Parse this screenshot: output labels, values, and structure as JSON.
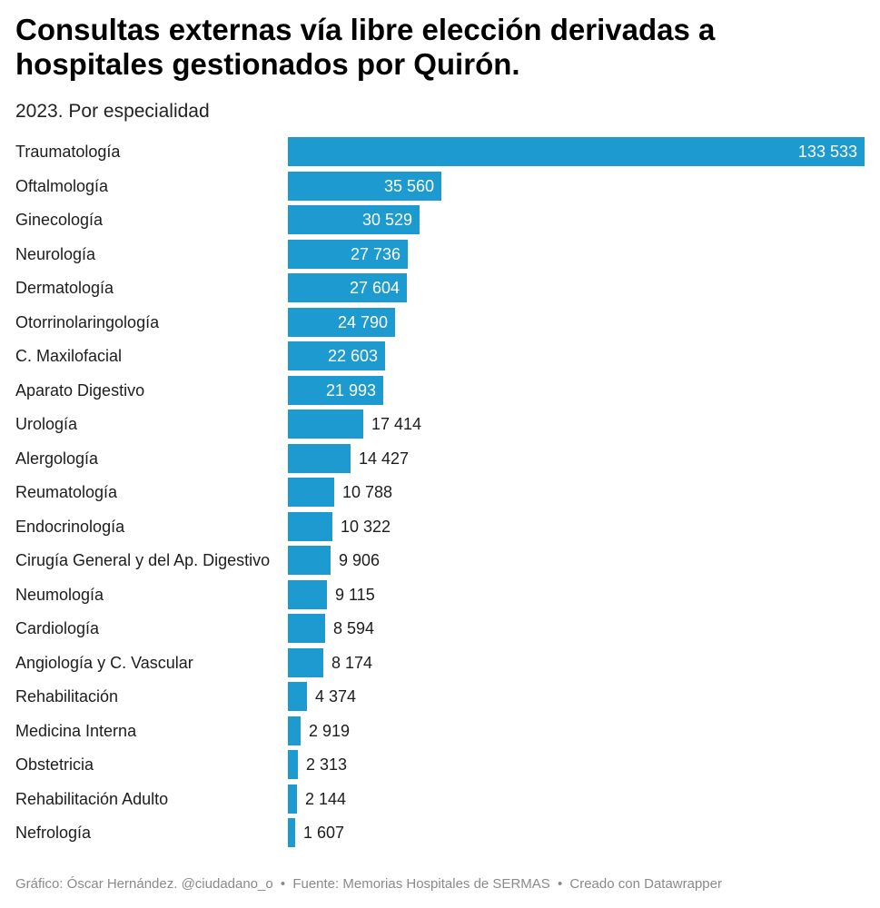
{
  "chart_data": {
    "type": "bar",
    "orientation": "horizontal",
    "title": "Consultas externas vía libre elección derivadas a hospitales gestionados por Quirón.",
    "subtitle": "2023. Por especialidad",
    "categories": [
      "Traumatología",
      "Oftalmología",
      "Ginecología",
      "Neurología",
      "Dermatología",
      "Otorrinolaringología",
      "C. Maxilofacial",
      "Aparato Digestivo",
      "Urología",
      "Alergología",
      "Reumatología",
      "Endocrinología",
      "Cirugía General y del Ap. Digestivo",
      "Neumología",
      "Cardiología",
      "Angiología y C. Vascular",
      "Rehabilitación",
      "Medicina Interna",
      "Obstetricia",
      "Rehabilitación Adulto",
      "Nefrología"
    ],
    "values": [
      133533,
      35560,
      30529,
      27736,
      27604,
      24790,
      22603,
      21993,
      17414,
      14427,
      10788,
      10322,
      9906,
      9115,
      8594,
      8174,
      4374,
      2919,
      2313,
      2144,
      1607
    ],
    "value_labels": [
      "133 533",
      "35 560",
      "30 529",
      "27 736",
      "27 604",
      "24 790",
      "22 603",
      "21 993",
      "17 414",
      "14 427",
      "10 788",
      "10 322",
      "9 906",
      "9 115",
      "8 594",
      "8 174",
      "4 374",
      "2 919",
      "2 313",
      "2 144",
      "1 607"
    ],
    "xlim": [
      0,
      133533
    ],
    "bar_color": "#1d9bd0",
    "grid": false,
    "xlabel": "",
    "ylabel": ""
  },
  "footer": {
    "credit": "Gráfico: Óscar Hernández. @ciudadano_o",
    "source": "Fuente: Memorias Hospitales de SERMAS",
    "tool": "Creado con Datawrapper",
    "separator": "•"
  }
}
